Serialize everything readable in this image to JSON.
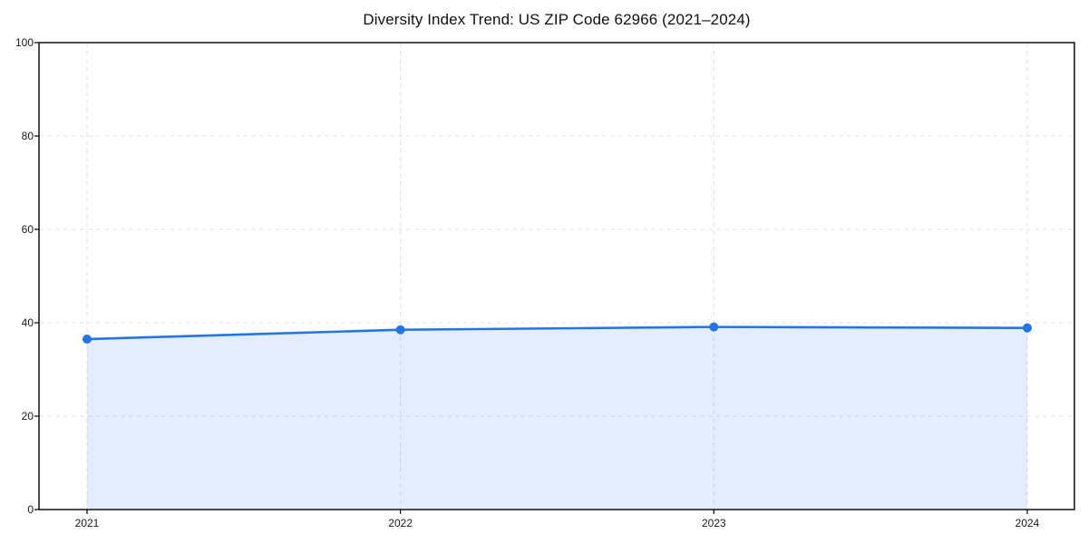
{
  "title": "Diversity Index Trend: US ZIP Code 62966 (2021–2024)",
  "chart_data": {
    "type": "area",
    "title": "Diversity Index Trend: US ZIP Code 62966 (2021–2024)",
    "x": [
      "2021",
      "2022",
      "2023",
      "2024"
    ],
    "values": [
      36.5,
      38.5,
      39.1,
      38.9
    ],
    "xlabel": "",
    "ylabel": "",
    "ylim": [
      0,
      100
    ],
    "yticks": [
      0,
      20,
      40,
      60,
      80,
      100
    ],
    "xticks": [
      "2021",
      "2022",
      "2023",
      "2024"
    ],
    "grid": true,
    "grid_style": "dashed",
    "legend": "none",
    "colors": {
      "line": "#2374e4",
      "marker": "#2374e4",
      "fill_rgba": "rgba(35,116,228,0.13)",
      "grid": "#e3e3e3",
      "axis": "#000000",
      "text": "#1a1a1a",
      "background": "#ffffff"
    }
  }
}
